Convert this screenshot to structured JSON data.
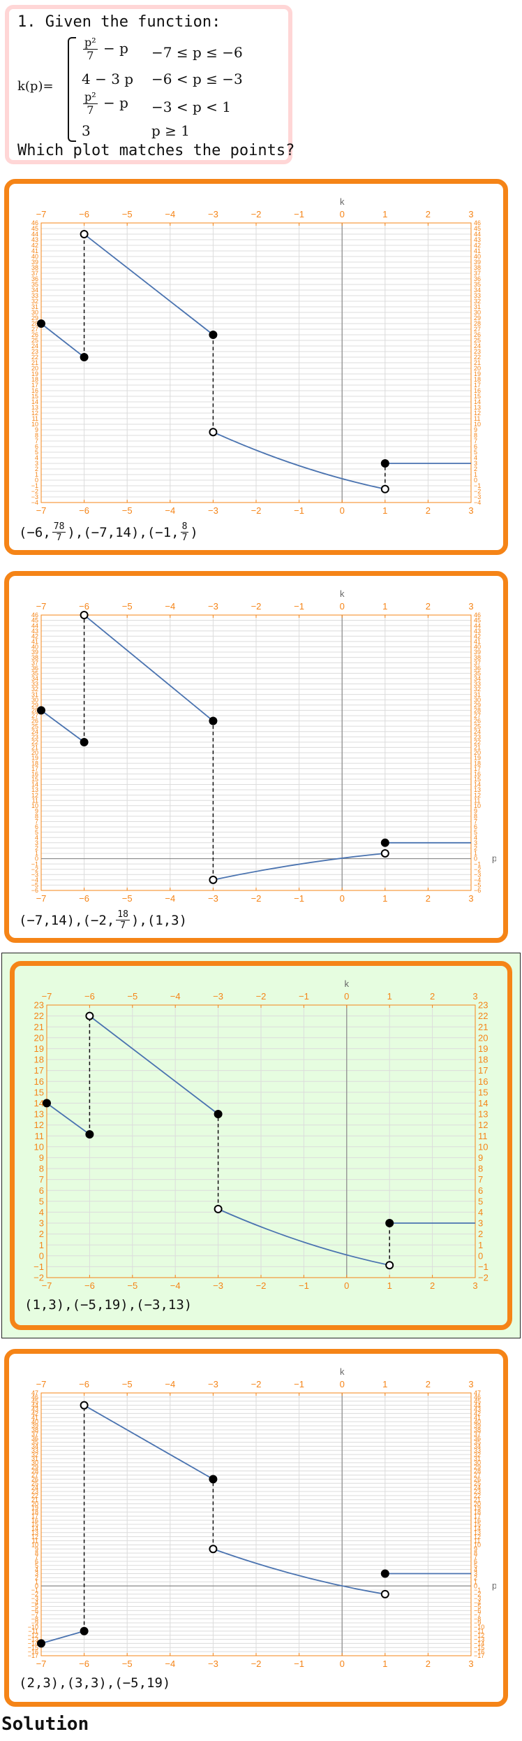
{
  "question": {
    "title": "1. Given the function:",
    "func_name": "k(p)=",
    "cases": [
      {
        "expr_num": "p²",
        "expr_den": "7",
        "expr_tail": " − p",
        "cond": "−7 ≤ p ≤ −6"
      },
      {
        "expr": "4 − 3 p",
        "cond": "−6 < p ≤ −3"
      },
      {
        "expr_num": "p²",
        "expr_den": "7",
        "expr_tail": " − p",
        "cond": "−3 < p < 1"
      },
      {
        "expr": "3",
        "cond": "p ≥ 1"
      }
    ],
    "prompt": "Which plot matches the points?"
  },
  "colors": {
    "orange": "#f58417",
    "curve": "#4a73b0",
    "correct_bg": "#e6fde0",
    "question_border": "#ffd6d6"
  },
  "options": [
    {
      "axis_top": "k",
      "axis_right": "",
      "coords": [
        {
          "pre": "(−6,",
          "num": "78",
          "den": "7",
          "post": ")"
        },
        {
          "pre": ",(−7,14)",
          "num": "",
          "den": "",
          "post": ""
        },
        {
          "pre": ",(−1,",
          "num": "8",
          "den": "7",
          "post": ")"
        }
      ]
    },
    {
      "axis_top": "k",
      "axis_right": "p",
      "coords": [
        {
          "pre": "(−7,14)",
          "num": "",
          "den": "",
          "post": ""
        },
        {
          "pre": ",(−2,",
          "num": "18",
          "den": "7",
          "post": ")"
        },
        {
          "pre": ",(1,3)",
          "num": "",
          "den": "",
          "post": ""
        }
      ]
    },
    {
      "axis_top": "k",
      "axis_right": "",
      "coords": [
        {
          "pre": "(1,3),(−5,19),(−3,13)",
          "num": "",
          "den": "",
          "post": ""
        }
      ]
    },
    {
      "axis_top": "k",
      "axis_right": "p",
      "coords": [
        {
          "pre": "(2,3),(3,3),(−5,19)",
          "num": "",
          "den": "",
          "post": ""
        }
      ]
    }
  ],
  "chart_data": [
    {
      "type": "line",
      "xlim": [
        -7,
        3
      ],
      "ylim": [
        -4,
        46
      ],
      "x_ticks": [
        -7,
        -6,
        -5,
        -4,
        -3,
        -2,
        -1,
        0,
        1,
        2,
        3
      ],
      "segments": [
        {
          "x": [
            -7,
            -6
          ],
          "y": [
            28,
            22
          ],
          "start": "closed",
          "end": "closed"
        },
        {
          "x": [
            -6,
            -3
          ],
          "y": [
            44,
            26
          ],
          "start": "open",
          "end": "closed"
        },
        {
          "x": [
            -3,
            1
          ],
          "y": [
            8.6,
            -1.6
          ],
          "start": "open",
          "end": "open",
          "curve": "quadratic"
        },
        {
          "x": [
            1,
            3
          ],
          "y": [
            3,
            3
          ],
          "start": "closed",
          "end": "none"
        }
      ],
      "dashed": [
        {
          "x": -6,
          "y": [
            22,
            44
          ]
        },
        {
          "x": -3,
          "y": [
            8.6,
            26
          ]
        },
        {
          "x": 1,
          "y": [
            -1.6,
            3
          ]
        }
      ]
    },
    {
      "type": "line",
      "xlim": [
        -7,
        3
      ],
      "ylim": [
        -6,
        46
      ],
      "x_ticks": [
        -7,
        -6,
        -5,
        -4,
        -3,
        -2,
        -1,
        0,
        1,
        2,
        3
      ],
      "segments": [
        {
          "x": [
            -7,
            -6
          ],
          "y": [
            28,
            22
          ],
          "start": "closed",
          "end": "closed"
        },
        {
          "x": [
            -6,
            -3
          ],
          "y": [
            46,
            26
          ],
          "start": "open",
          "end": "closed"
        },
        {
          "x": [
            -3,
            1
          ],
          "y": [
            -4,
            1
          ],
          "start": "open",
          "end": "open",
          "curve": "quadratic"
        },
        {
          "x": [
            1,
            3
          ],
          "y": [
            3,
            3
          ],
          "start": "closed",
          "end": "none"
        }
      ],
      "dashed": [
        {
          "x": -6,
          "y": [
            22,
            46
          ]
        },
        {
          "x": -3,
          "y": [
            -4,
            26
          ]
        }
      ]
    },
    {
      "type": "line",
      "xlim": [
        -7,
        3
      ],
      "ylim": [
        -2,
        23
      ],
      "x_ticks": [
        -7,
        -6,
        -5,
        -4,
        -3,
        -2,
        -1,
        0,
        1,
        2,
        3
      ],
      "segments": [
        {
          "x": [
            -7,
            -6
          ],
          "y": [
            14,
            11.14
          ],
          "start": "closed",
          "end": "closed"
        },
        {
          "x": [
            -6,
            -3
          ],
          "y": [
            22,
            13
          ],
          "start": "open",
          "end": "closed"
        },
        {
          "x": [
            -3,
            1
          ],
          "y": [
            4.29,
            -0.86
          ],
          "start": "open",
          "end": "open",
          "curve": "quadratic"
        },
        {
          "x": [
            1,
            3
          ],
          "y": [
            3,
            3
          ],
          "start": "closed",
          "end": "none"
        }
      ],
      "dashed": [
        {
          "x": -6,
          "y": [
            11.14,
            22
          ]
        },
        {
          "x": -3,
          "y": [
            4.29,
            13
          ]
        },
        {
          "x": 1,
          "y": [
            -0.86,
            3
          ]
        }
      ]
    },
    {
      "type": "line",
      "xlim": [
        -7,
        3
      ],
      "ylim": [
        -17,
        47
      ],
      "x_ticks": [
        -7,
        -6,
        -5,
        -4,
        -3,
        -2,
        -1,
        0,
        1,
        2,
        3
      ],
      "segments": [
        {
          "x": [
            -7,
            -6
          ],
          "y": [
            -14,
            -11
          ],
          "start": "closed",
          "end": "closed"
        },
        {
          "x": [
            -6,
            -3
          ],
          "y": [
            44,
            26
          ],
          "start": "open",
          "end": "closed"
        },
        {
          "x": [
            -3,
            1
          ],
          "y": [
            9,
            -2
          ],
          "start": "open",
          "end": "open",
          "curve": "quadratic"
        },
        {
          "x": [
            1,
            3
          ],
          "y": [
            3,
            3
          ],
          "start": "closed",
          "end": "none"
        }
      ],
      "dashed": [
        {
          "x": -6,
          "y": [
            -11,
            44
          ]
        },
        {
          "x": -3,
          "y": [
            9,
            26
          ]
        }
      ]
    }
  ],
  "solution_label": "Solution"
}
